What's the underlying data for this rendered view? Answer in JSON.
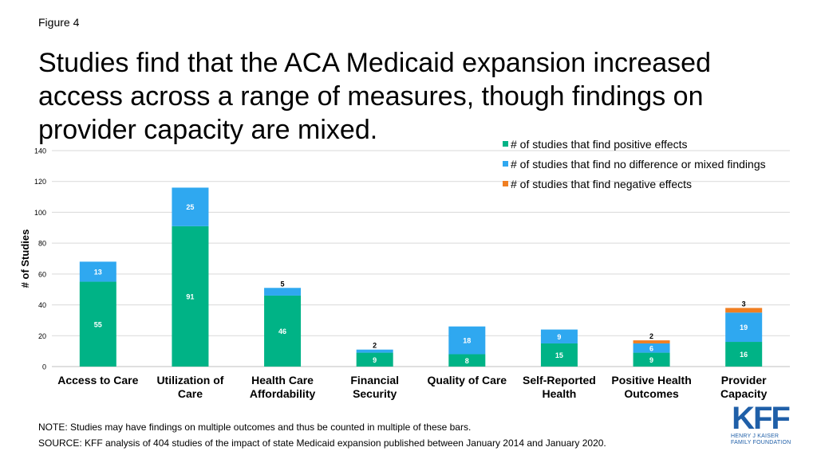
{
  "figure_label": "Figure 4",
  "title": "Studies find that the ACA Medicaid expansion increased access across a range of measures, though findings on provider capacity are mixed.",
  "note": "NOTE: Studies may have findings on multiple outcomes and thus be counted in multiple of these bars.",
  "source": "SOURCE: KFF analysis of 404 studies of the impact of state Medicaid expansion published between January 2014 and January 2020.",
  "logo": {
    "mark": "KFF",
    "line1": "HENRY J KAISER",
    "line2": "FAMILY FOUNDATION"
  },
  "chart_data": {
    "type": "bar",
    "stacked": true,
    "title": "",
    "xlabel": "",
    "ylabel": "# of Studies",
    "ylim": [
      0,
      140
    ],
    "yticks": [
      0,
      20,
      40,
      60,
      80,
      100,
      120,
      140
    ],
    "grid": true,
    "legend_position": "top-right",
    "categories": [
      [
        "Access to Care"
      ],
      [
        "Utilization of",
        "Care"
      ],
      [
        "Health Care",
        "Affordability"
      ],
      [
        "Financial",
        "Security"
      ],
      [
        "Quality of Care"
      ],
      [
        "Self-Reported",
        "Health"
      ],
      [
        "Positive Health",
        "Outcomes"
      ],
      [
        "Provider",
        "Capacity"
      ]
    ],
    "series": [
      {
        "name": "# of studies that find positive effects",
        "color": "#00b386",
        "values": [
          55,
          91,
          46,
          9,
          8,
          15,
          9,
          16
        ]
      },
      {
        "name": "# of studies that find no difference or mixed findings",
        "color": "#2fa8f0",
        "values": [
          13,
          25,
          5,
          2,
          18,
          9,
          6,
          19
        ]
      },
      {
        "name": "# of studies that find negative effects",
        "color": "#f07f22",
        "values": [
          0,
          0,
          0,
          0,
          0,
          0,
          2,
          3
        ]
      }
    ]
  }
}
